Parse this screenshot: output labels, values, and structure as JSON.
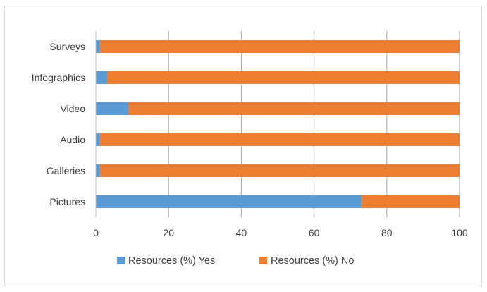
{
  "chart_data": {
    "type": "bar",
    "orientation": "horizontal",
    "stacked": true,
    "categories": [
      "Pictures",
      "Galleries",
      "Audio",
      "Video",
      "Infographics",
      "Surveys"
    ],
    "series": [
      {
        "name": "Resources (%) Yes",
        "values": [
          73,
          1,
          1,
          9,
          3,
          1
        ],
        "color": "#5b9bd5"
      },
      {
        "name": "Resources (%) No",
        "values": [
          27,
          99,
          99,
          91,
          97,
          99
        ],
        "color": "#ed7d31"
      }
    ],
    "xlim": [
      0,
      100
    ],
    "xticks": [
      0,
      20,
      40,
      60,
      80,
      100
    ],
    "grid": true,
    "legend_position": "bottom"
  }
}
